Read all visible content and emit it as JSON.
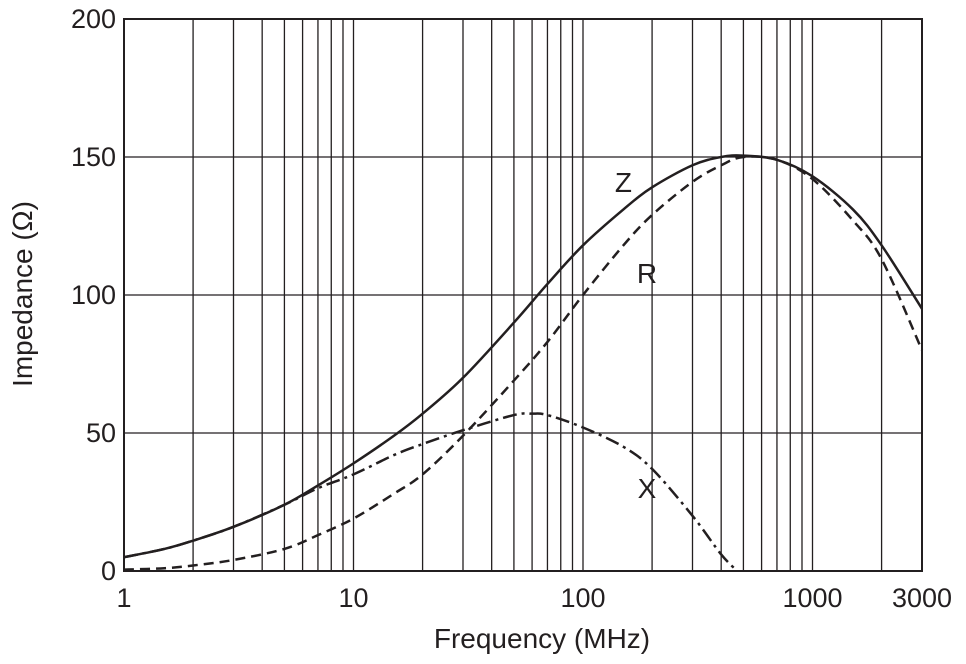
{
  "chart_data": {
    "type": "line",
    "x_scale": "log",
    "xlim": [
      1,
      3000
    ],
    "ylim": [
      0,
      200
    ],
    "xlabel": "Frequency (MHz)",
    "ylabel": "Impedance (Ω)",
    "grid": true,
    "x_ticks": [
      {
        "value": 1,
        "label": "1"
      },
      {
        "value": 10,
        "label": "10"
      },
      {
        "value": 100,
        "label": "100"
      },
      {
        "value": 1000,
        "label": "1000"
      },
      {
        "value": 3000,
        "label": "3000"
      }
    ],
    "y_ticks": [
      {
        "value": 0,
        "label": "0"
      },
      {
        "value": 50,
        "label": "50"
      },
      {
        "value": 100,
        "label": "100"
      },
      {
        "value": 150,
        "label": "150"
      },
      {
        "value": 200,
        "label": "200"
      }
    ],
    "series": [
      {
        "name": "Z",
        "style": "solid",
        "label_at": {
          "x": 150,
          "y": 141
        },
        "points": [
          [
            1,
            5
          ],
          [
            1.5,
            8
          ],
          [
            2,
            11
          ],
          [
            3,
            16
          ],
          [
            5,
            24
          ],
          [
            7,
            31
          ],
          [
            10,
            39
          ],
          [
            15,
            49
          ],
          [
            20,
            57
          ],
          [
            30,
            70
          ],
          [
            50,
            90
          ],
          [
            70,
            104
          ],
          [
            100,
            118
          ],
          [
            150,
            131
          ],
          [
            200,
            139
          ],
          [
            300,
            147
          ],
          [
            400,
            150
          ],
          [
            500,
            150.5
          ],
          [
            700,
            149
          ],
          [
            1000,
            143
          ],
          [
            1500,
            131
          ],
          [
            2000,
            118
          ],
          [
            3000,
            95
          ]
        ]
      },
      {
        "name": "R",
        "style": "dashed",
        "label_at": {
          "x": 190,
          "y": 108
        },
        "points": [
          [
            1,
            0.5
          ],
          [
            1.5,
            1
          ],
          [
            2,
            2
          ],
          [
            3,
            4
          ],
          [
            5,
            8
          ],
          [
            7,
            13
          ],
          [
            10,
            19
          ],
          [
            15,
            28
          ],
          [
            20,
            35
          ],
          [
            30,
            49
          ],
          [
            50,
            69
          ],
          [
            70,
            83
          ],
          [
            100,
            100
          ],
          [
            150,
            118
          ],
          [
            200,
            129
          ],
          [
            300,
            141
          ],
          [
            400,
            147
          ],
          [
            500,
            150
          ],
          [
            700,
            149
          ],
          [
            1000,
            142
          ],
          [
            1500,
            127
          ],
          [
            2000,
            113
          ],
          [
            3000,
            80
          ]
        ]
      },
      {
        "name": "X",
        "style": "dash-dot",
        "label_at": {
          "x": 190,
          "y": 30
        },
        "points": [
          [
            1,
            5
          ],
          [
            1.5,
            8
          ],
          [
            2,
            11
          ],
          [
            3,
            16
          ],
          [
            5,
            24
          ],
          [
            7,
            30
          ],
          [
            10,
            35
          ],
          [
            15,
            42
          ],
          [
            20,
            46
          ],
          [
            30,
            51
          ],
          [
            50,
            56.5
          ],
          [
            60,
            57
          ],
          [
            70,
            56.5
          ],
          [
            100,
            52
          ],
          [
            150,
            45
          ],
          [
            200,
            37
          ],
          [
            300,
            20
          ],
          [
            400,
            6
          ],
          [
            470,
            0
          ]
        ]
      }
    ]
  }
}
